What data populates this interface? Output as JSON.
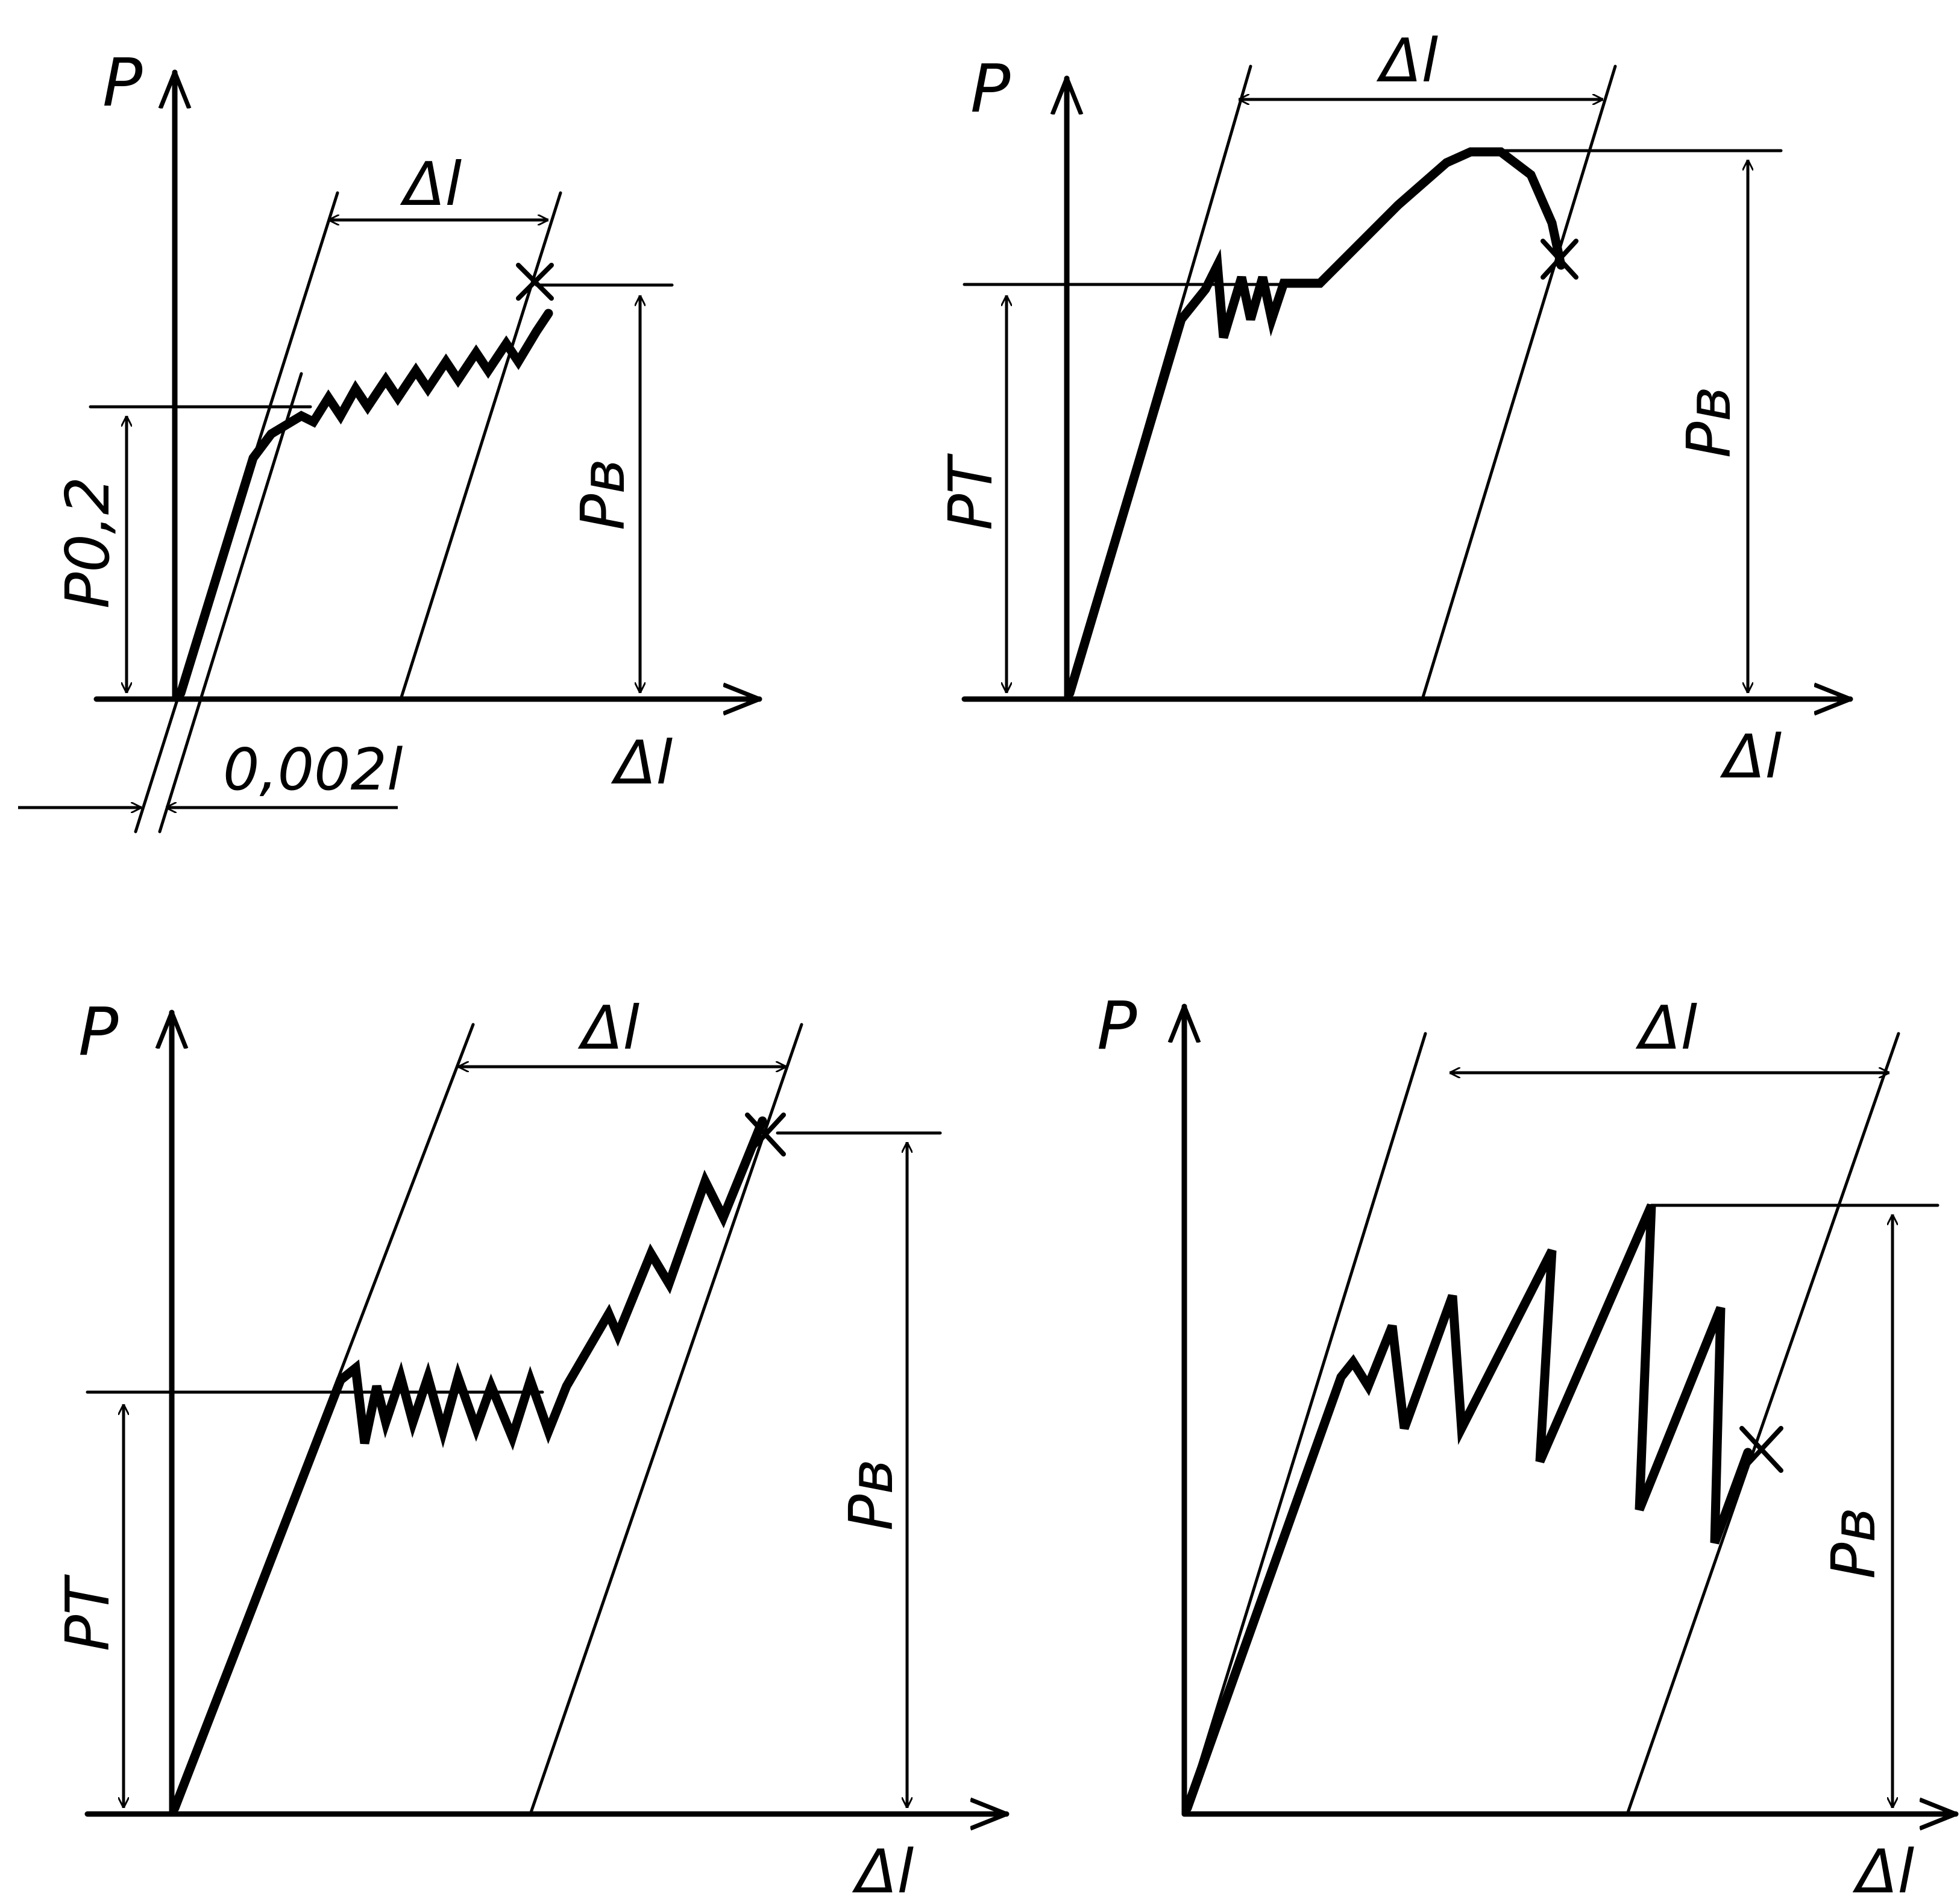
{
  "diagrams": [
    {
      "axis_y": "P",
      "axis_x": "Δl",
      "dim_top": "Δl",
      "dim_left": "P0,2",
      "dim_right": "Pв",
      "offset_label": "0,002l"
    },
    {
      "axis_y": "P",
      "axis_x": "Δl",
      "dim_top": "Δl",
      "dim_left": "PT",
      "dim_right": "Pв"
    },
    {
      "axis_y": "P",
      "axis_x": "Δl",
      "dim_top": "Δl",
      "dim_left": "PT",
      "dim_right": "Pв"
    },
    {
      "axis_y": "P",
      "axis_x": "Δl",
      "dim_top": "Δl",
      "dim_right": "Pв"
    }
  ]
}
